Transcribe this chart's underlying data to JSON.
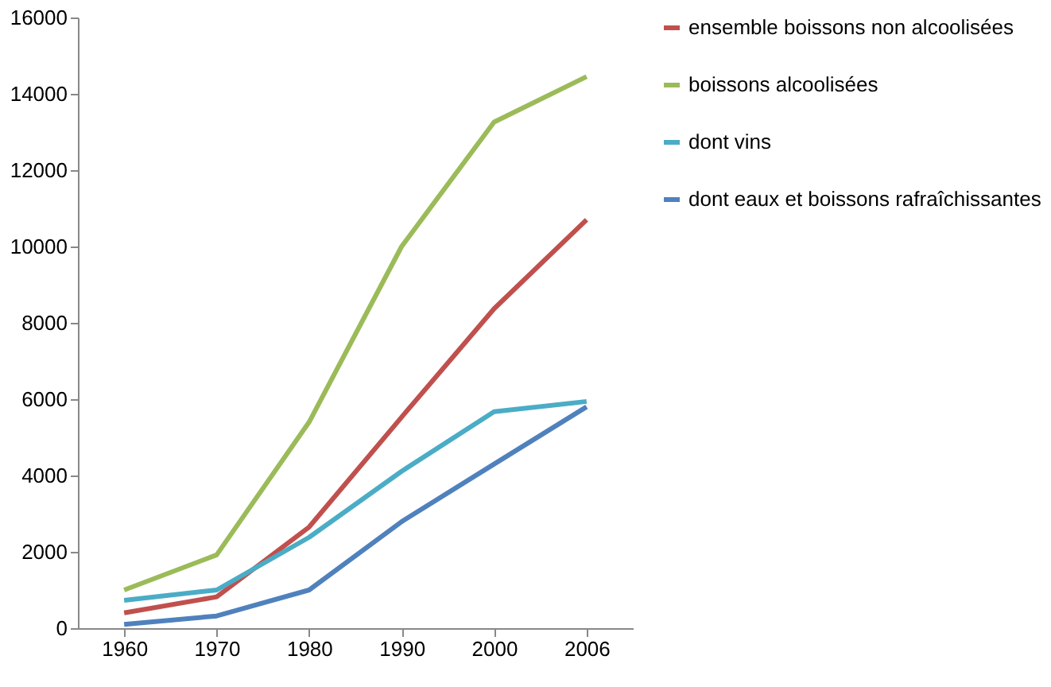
{
  "chart_data": {
    "type": "line",
    "categories": [
      "1960",
      "1970",
      "1980",
      "1990",
      "2000",
      "2006"
    ],
    "series": [
      {
        "name": "ensemble boissons non alcoolisées",
        "color": "#c0504d",
        "values": [
          400,
          820,
          2650,
          5530,
          8370,
          10700
        ]
      },
      {
        "name": "boissons alcoolisées",
        "color": "#9bbb59",
        "values": [
          1000,
          1920,
          5400,
          10000,
          13260,
          14450
        ]
      },
      {
        "name": "dont vins",
        "color": "#4bacc6",
        "values": [
          730,
          1000,
          2380,
          4110,
          5670,
          5940
        ]
      },
      {
        "name": "dont eaux et boissons rafraîchissantes",
        "color": "#4f81bd",
        "values": [
          100,
          320,
          1000,
          2790,
          4300,
          5800
        ]
      }
    ],
    "ylim": [
      0,
      16000
    ],
    "yticks": [
      0,
      2000,
      4000,
      6000,
      8000,
      10000,
      12000,
      14000,
      16000
    ],
    "grid": false,
    "legend": "right",
    "marker": "none",
    "line_style": "solid"
  }
}
